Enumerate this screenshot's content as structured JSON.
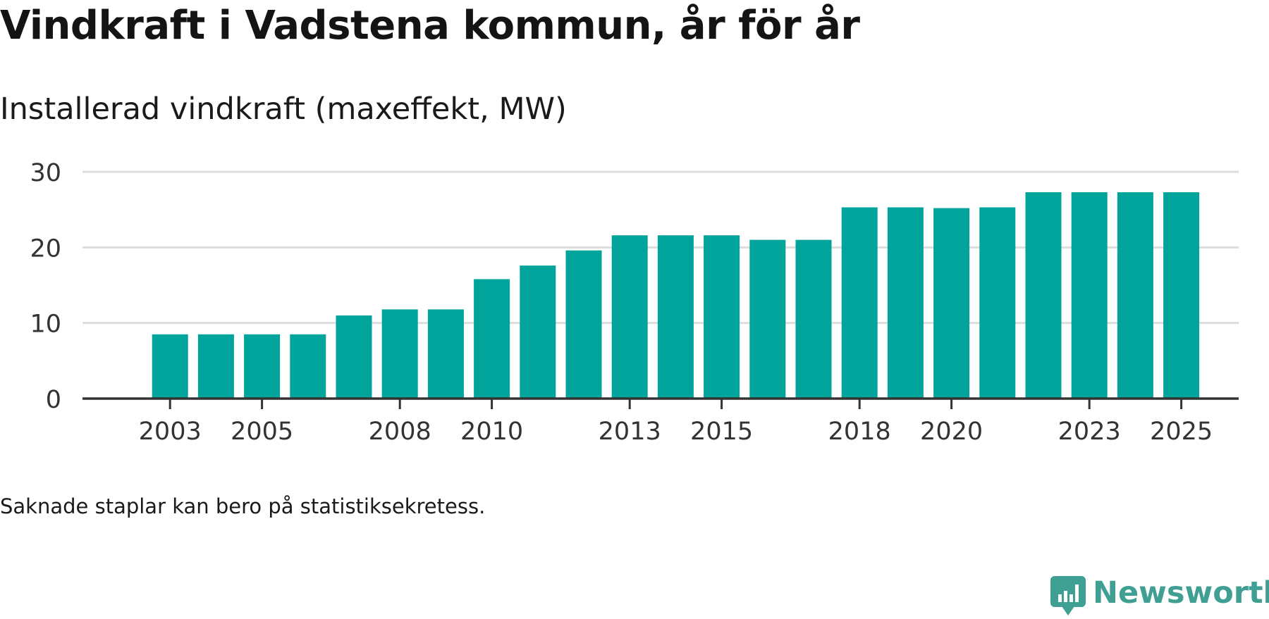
{
  "title": "Vindkraft i Vadstena kommun, år för år",
  "subtitle": "Installerad vindkraft (maxeffekt, MW)",
  "footnote": "Saknade staplar kan bero på statistiksekretess.",
  "brand": {
    "name": "Newsworthy",
    "icon": "newsworthy-logo-icon"
  },
  "colors": {
    "bar": "#00a49a",
    "gridline": "#dddddd",
    "axis": "#333333",
    "brand": "#3f9f93"
  },
  "chart_data": {
    "type": "bar",
    "title": "Vindkraft i Vadstena kommun, år för år",
    "ylabel": "Installerad vindkraft (maxeffekt, MW)",
    "xlabel": "",
    "ylim": [
      0,
      30
    ],
    "yticks": [
      0,
      10,
      20,
      30
    ],
    "grid": true,
    "categories": [
      "2002",
      "2003",
      "2004",
      "2005",
      "2006",
      "2007",
      "2008",
      "2009",
      "2010",
      "2011",
      "2012",
      "2013",
      "2014",
      "2015",
      "2016",
      "2017",
      "2018",
      "2019",
      "2020",
      "2021",
      "2022",
      "2023",
      "2024",
      "2025",
      "2026"
    ],
    "xtick_labels": [
      "2003",
      "2005",
      "2008",
      "2010",
      "2013",
      "2015",
      "2018",
      "2020",
      "2023",
      "2025"
    ],
    "values": [
      null,
      8.5,
      8.5,
      8.5,
      8.5,
      11.0,
      11.8,
      11.8,
      15.8,
      17.6,
      19.6,
      21.6,
      21.6,
      21.6,
      21.0,
      21.0,
      25.3,
      25.3,
      25.2,
      25.3,
      27.3,
      27.3,
      27.3,
      27.3,
      null
    ]
  }
}
